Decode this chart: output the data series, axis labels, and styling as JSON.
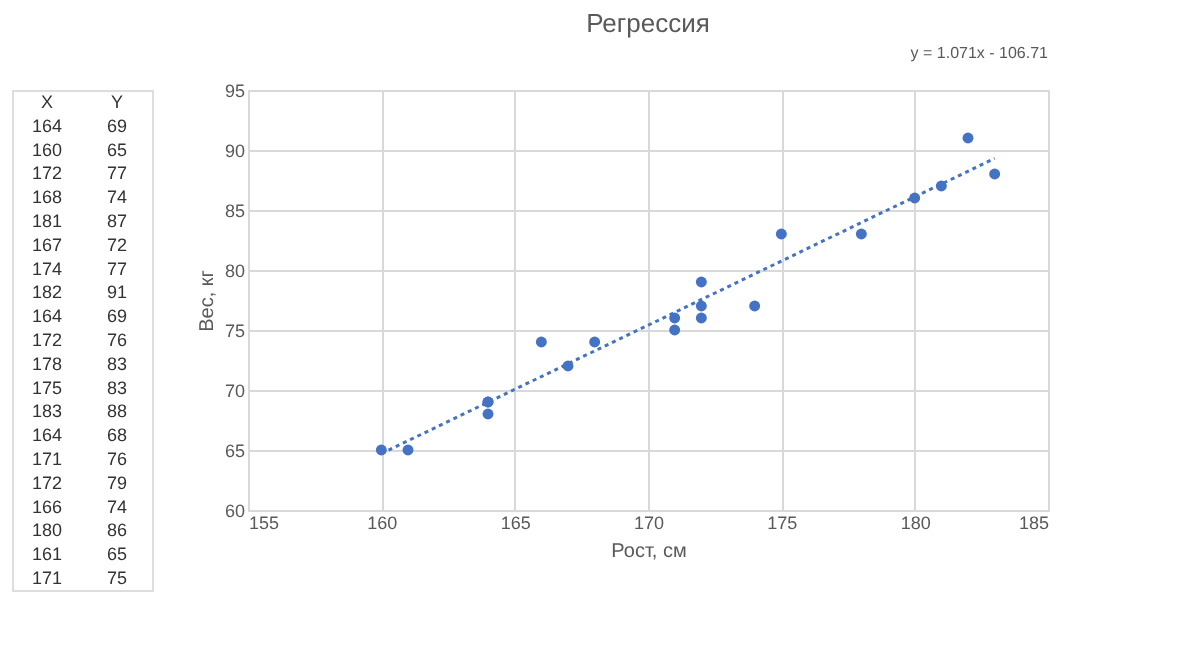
{
  "chart_data": [
    {
      "type": "other",
      "annotations": [
        "X",
        "Y",
        "164",
        "69",
        "160",
        "65",
        "172",
        "77",
        "168",
        "74",
        "181",
        "87",
        "167",
        "72",
        "174",
        "77",
        "182",
        "91",
        "164",
        "69",
        "172",
        "76",
        "178",
        "83",
        "175",
        "83",
        "183",
        "88",
        "164",
        "68",
        "171",
        "76",
        "172",
        "79",
        "166",
        "74",
        "180",
        "86",
        "161",
        "65",
        "171",
        "75"
      ]
    },
    {
      "type": "scatter",
      "title": "Регрессия",
      "xlabel": "Рост, см",
      "ylabel": "Вес, кг",
      "annotations": [
        "y = 1.071x - 106.71"
      ],
      "series": [
        {
          "color": "#4472c4",
          "x": [
            164,
            160,
            172,
            168,
            181,
            167,
            174,
            182,
            164,
            172,
            178,
            175,
            183,
            164,
            171,
            172,
            166,
            180,
            161,
            171
          ],
          "values": [
            69,
            65,
            77,
            74,
            87,
            72,
            77,
            91,
            69,
            76,
            83,
            83,
            88,
            68,
            76,
            79,
            74,
            86,
            65,
            75
          ]
        },
        {
          "type": "line",
          "color": "#4472c4",
          "line_style": "dotted",
          "marker": "none",
          "x": [
            160,
            183
          ],
          "values": [
            64.7,
            89.3
          ]
        }
      ],
      "marker": "circle",
      "grid": true,
      "xlim": [
        155,
        185
      ],
      "xticks": [
        155,
        160,
        165,
        170,
        175,
        180,
        185
      ],
      "ylim": [
        60,
        95
      ],
      "yticks": [
        60,
        65,
        70,
        75,
        80,
        85,
        90,
        95
      ]
    }
  ]
}
